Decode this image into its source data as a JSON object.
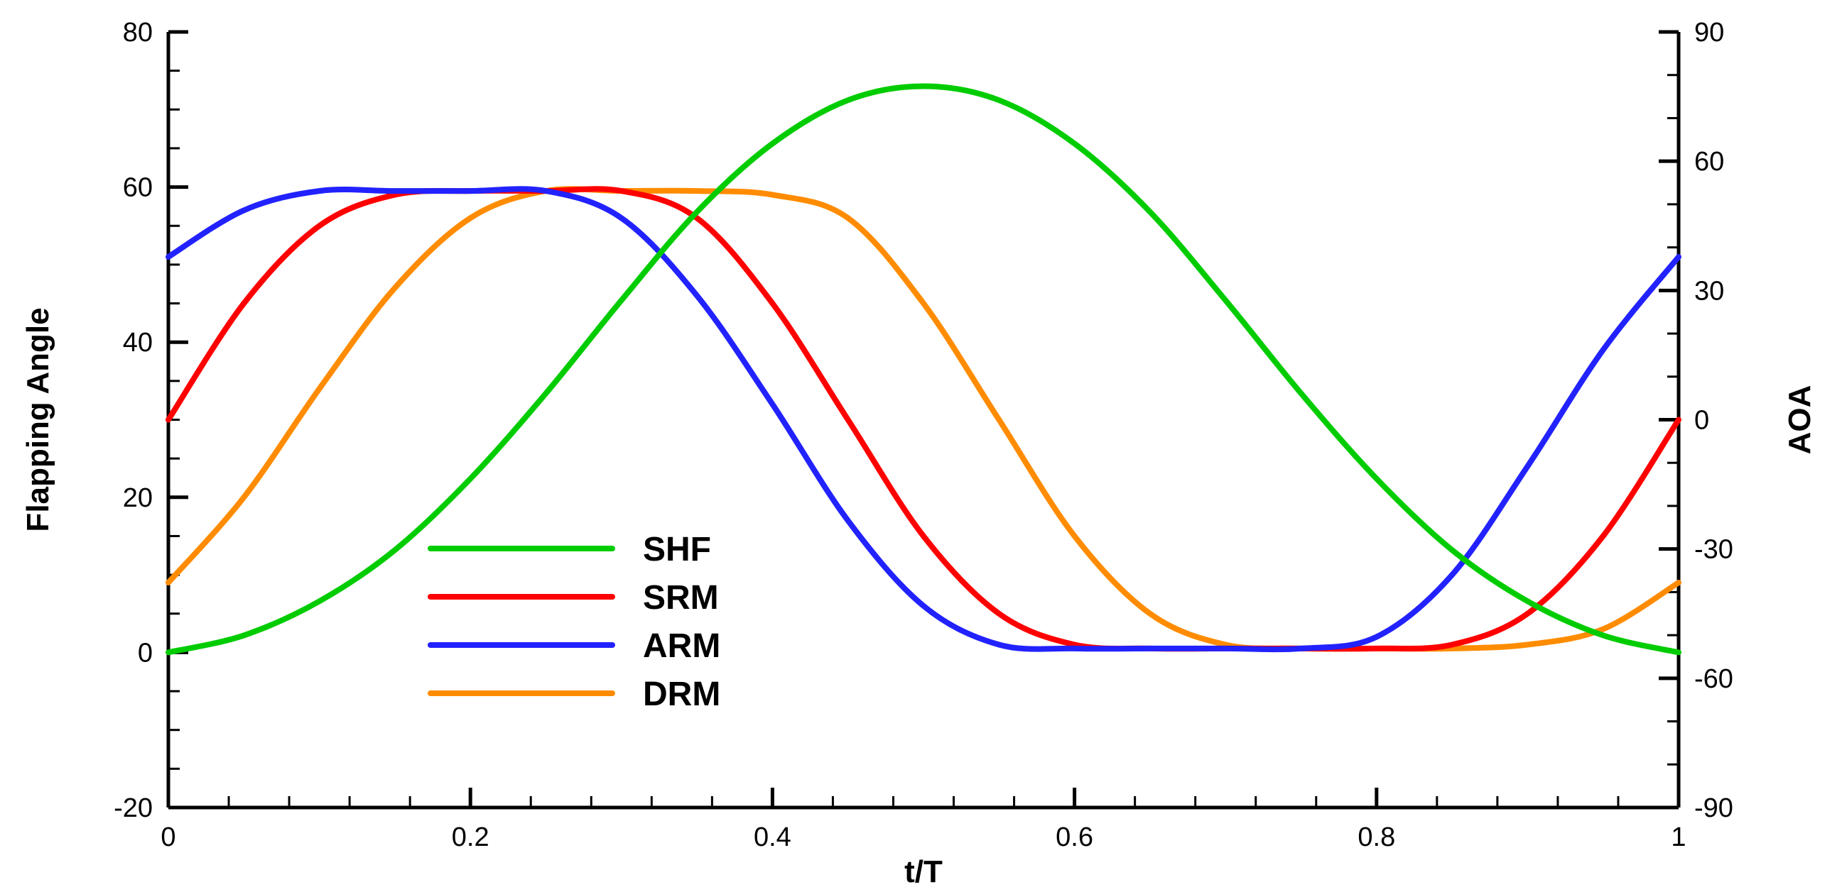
{
  "chart_data": {
    "type": "line",
    "xlabel": "t/T",
    "ylabel": "Flapping Angle",
    "y2label": "AOA",
    "xlim": [
      0,
      1
    ],
    "ylim": [
      -20,
      80
    ],
    "y2lim": [
      -90,
      90
    ],
    "x_ticks": [
      "0",
      "0.2",
      "0.4",
      "0.6",
      "0.8",
      "1"
    ],
    "y_ticks": [
      "-20",
      "0",
      "20",
      "40",
      "60",
      "80"
    ],
    "y2_ticks": [
      "-90",
      "-60",
      "-30",
      "0",
      "30",
      "60",
      "90"
    ],
    "grid": false,
    "legend_position": "bottom-center",
    "x": [
      0,
      0.05,
      0.1,
      0.15,
      0.2,
      0.25,
      0.3,
      0.35,
      0.4,
      0.45,
      0.5,
      0.55,
      0.6,
      0.65,
      0.7,
      0.75,
      0.8,
      0.85,
      0.9,
      0.95,
      1
    ],
    "series": [
      {
        "name": "SHF",
        "color": "#00cc00",
        "values": [
          0,
          2.2,
          6.6,
          13.2,
          22.4,
          33.4,
          45.4,
          56.8,
          65.6,
          71.2,
          73.0,
          71.2,
          65.6,
          56.8,
          45.4,
          33.4,
          22.4,
          13.2,
          6.6,
          2.2,
          0
        ]
      },
      {
        "name": "SRM",
        "color": "#ff0000",
        "values": [
          30,
          45,
          55,
          59,
          59.5,
          59.5,
          59.5,
          56,
          45,
          30,
          15,
          5,
          1,
          0.5,
          0.5,
          0.5,
          0.5,
          1,
          5,
          15,
          30
        ]
      },
      {
        "name": "ARM",
        "color": "#2222ff",
        "values": [
          51,
          57,
          59.5,
          59.5,
          59.5,
          59.5,
          56,
          46,
          32,
          17,
          6,
          1,
          0.5,
          0.5,
          0.5,
          0.5,
          2,
          10,
          24,
          39,
          51
        ]
      },
      {
        "name": "DRM",
        "color": "#ff8c00",
        "values": [
          9,
          20,
          34,
          47,
          56,
          59.5,
          59.5,
          59.5,
          59,
          56,
          45,
          30,
          15,
          5,
          1,
          0.5,
          0.5,
          0.5,
          1,
          3,
          9
        ]
      }
    ]
  }
}
